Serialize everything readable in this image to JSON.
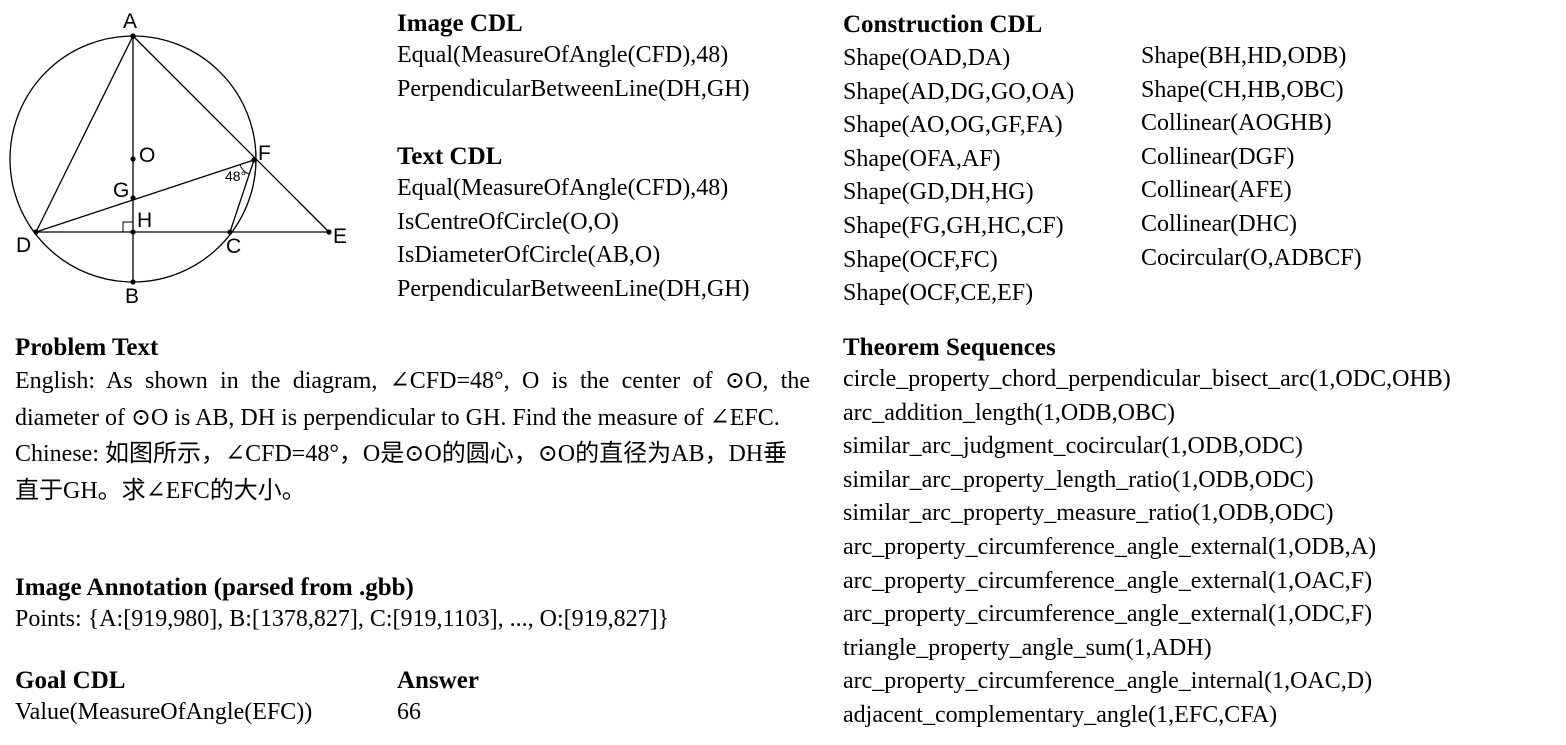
{
  "diagram": {
    "points": [
      "A",
      "B",
      "C",
      "D",
      "E",
      "F",
      "G",
      "H",
      "O"
    ],
    "angle_label": "48°"
  },
  "image_cdl": {
    "heading": "Image CDL",
    "lines": [
      "Equal(MeasureOfAngle(CFD),48)",
      "PerpendicularBetweenLine(DH,GH)"
    ]
  },
  "text_cdl": {
    "heading": "Text CDL",
    "lines": [
      "Equal(MeasureOfAngle(CFD),48)",
      "IsCentreOfCircle(O,O)",
      "IsDiameterOfCircle(AB,O)",
      "PerpendicularBetweenLine(DH,GH)"
    ]
  },
  "construction_cdl": {
    "heading": "Construction CDL",
    "col1": [
      "Shape(OAD,DA)",
      "Shape(AD,DG,GO,OA)",
      "Shape(AO,OG,GF,FA)",
      "Shape(OFA,AF)",
      "Shape(GD,DH,HG)",
      "Shape(FG,GH,HC,CF)",
      "Shape(OCF,FC)",
      "Shape(OCF,CE,EF)"
    ],
    "col2": [
      "Shape(BH,HD,ODB)",
      "Shape(CH,HB,OBC)",
      "Collinear(AOGHB)",
      "Collinear(DGF)",
      "Collinear(AFE)",
      "Collinear(DHC)",
      "Cocircular(O,ADBCF)"
    ]
  },
  "problem_text": {
    "heading": "Problem Text",
    "english": "English: As shown in the diagram, ∠CFD=48°, O is the center of ⊙O, the diameter of ⊙O is AB, DH is perpendicular to GH. Find the measure of ∠EFC.",
    "chinese": "Chinese: 如图所示，∠CFD=48°，O是⊙O的圆心，⊙O的直径为AB，DH垂直于GH。求∠EFC的大小。"
  },
  "image_annotation": {
    "heading": "Image Annotation (parsed from .gbb)",
    "text": "Points: {A:[919,980], B:[1378,827], C:[919,1103], ..., O:[919,827]}"
  },
  "goal_cdl": {
    "heading": "Goal CDL",
    "value": "Value(MeasureOfAngle(EFC))"
  },
  "answer": {
    "heading": "Answer",
    "value": "66"
  },
  "theorem_sequences": {
    "heading": "Theorem Sequences",
    "lines": [
      "circle_property_chord_perpendicular_bisect_arc(1,ODC,OHB)",
      "arc_addition_length(1,ODB,OBC)",
      "similar_arc_judgment_cocircular(1,ODB,ODC)",
      "similar_arc_property_length_ratio(1,ODB,ODC)",
      "similar_arc_property_measure_ratio(1,ODB,ODC)",
      "arc_property_circumference_angle_external(1,ODB,A)",
      "arc_property_circumference_angle_external(1,OAC,F)",
      "arc_property_circumference_angle_external(1,ODC,F)",
      "triangle_property_angle_sum(1,ADH)",
      "arc_property_circumference_angle_internal(1,OAC,D)",
      "adjacent_complementary_angle(1,EFC,CFA)"
    ]
  }
}
